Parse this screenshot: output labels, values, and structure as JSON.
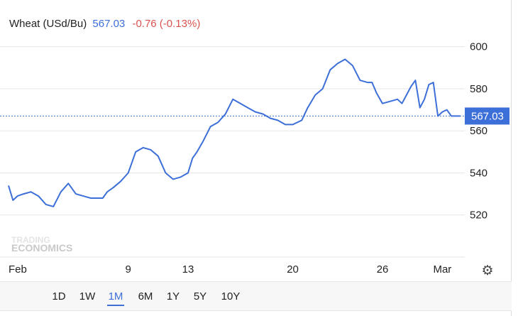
{
  "header": {
    "name": "Wheat (USd/Bu)",
    "price": "567.03",
    "change": "-0.76 (-0.13%)"
  },
  "watermark": {
    "line1": "TRADING",
    "line2": "ECONOMICS"
  },
  "colors": {
    "series": "#3d6fd8",
    "negative": "#d9534f",
    "grid": "#e6e6e6",
    "price_tag": "#3d6fd8"
  },
  "icons": {
    "settings": "gear-icon"
  },
  "range_buttons": [
    "1D",
    "1W",
    "1M",
    "6M",
    "1Y",
    "5Y",
    "10Y"
  ],
  "range_active": "1M",
  "chart_data": {
    "type": "line",
    "title": "Wheat (USd/Bu)",
    "x_ticks": [
      "Feb",
      "9",
      "13",
      "20",
      "26",
      "Mar"
    ],
    "x_tick_positions": [
      0,
      8,
      12,
      19,
      25,
      29
    ],
    "x_range": [
      0,
      30.5
    ],
    "ylim": [
      500,
      607
    ],
    "y_ticks": [
      520,
      540,
      560,
      580,
      600
    ],
    "last_price": 567.03,
    "grid": true,
    "series": [
      {
        "x": [
          0,
          0.3,
          0.6,
          1,
          1.5,
          2,
          2.5,
          3,
          3.5,
          4,
          4.5,
          5,
          5.5,
          6,
          6.3,
          6.6,
          7,
          7.5,
          8,
          8.5,
          9,
          9.5,
          10,
          10.5,
          11,
          11.5,
          12,
          12.3,
          12.6,
          13,
          13.5,
          14,
          14.5,
          15,
          15.5,
          16,
          16.5,
          17,
          17.5,
          18,
          18.5,
          19,
          19.3,
          19.6,
          20,
          20.5,
          21,
          21.5,
          22,
          22.5,
          23,
          23.5,
          24,
          24.3,
          24.6,
          25,
          25.5,
          26,
          26.3,
          26.6,
          26.9,
          27.2,
          27.5,
          27.8,
          28.1,
          28.4,
          28.7,
          29,
          29.3,
          29.6,
          29.9,
          30.2
        ],
        "y": [
          534,
          527,
          529,
          530,
          531,
          529,
          525,
          524,
          531,
          535,
          530,
          529,
          528,
          528,
          528,
          531,
          533,
          536,
          540,
          550,
          552,
          551,
          548,
          540,
          537,
          538,
          540,
          547,
          550,
          555,
          562,
          564,
          568,
          575,
          573,
          571,
          569,
          568,
          566,
          565,
          563,
          563,
          564,
          565,
          571,
          577,
          580,
          589,
          592,
          594,
          591,
          584,
          583,
          583,
          578,
          573,
          574,
          575,
          573,
          577,
          581,
          584,
          571,
          575,
          582,
          583,
          567,
          569,
          570,
          567.03,
          567.03,
          567.03
        ]
      }
    ]
  }
}
